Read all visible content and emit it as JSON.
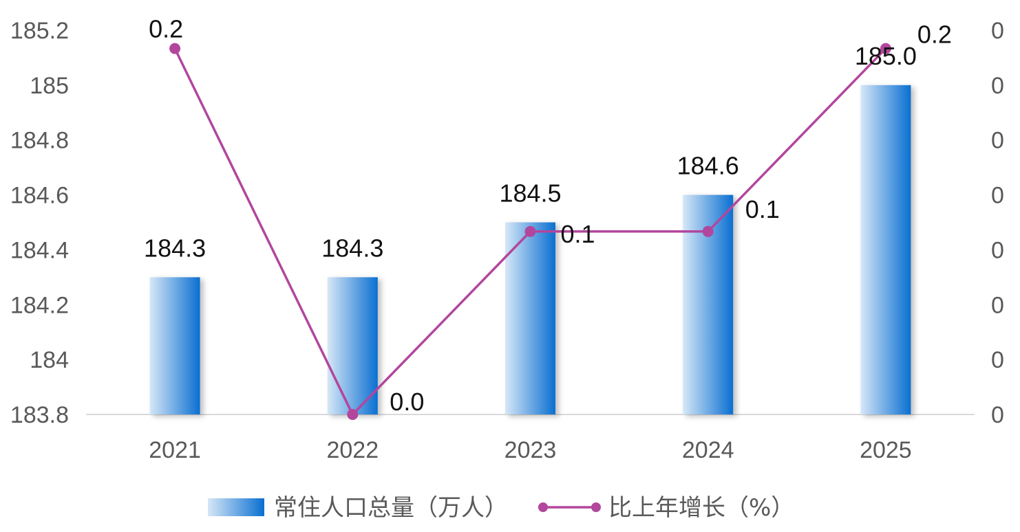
{
  "chart_data": {
    "type": "bar",
    "categories": [
      "2021",
      "2022",
      "2023",
      "2024",
      "2025"
    ],
    "series": [
      {
        "name": "常住人口总量（万人）",
        "type": "bar",
        "axis": "left",
        "values": [
          184.3,
          184.3,
          184.5,
          184.6,
          185.0
        ],
        "labels": [
          "184.3",
          "184.3",
          "184.5",
          "184.6",
          "185.0"
        ]
      },
      {
        "name": "比上年增长（%）",
        "type": "line",
        "axis": "right",
        "values": [
          0.2,
          0.0,
          0.1,
          0.1,
          0.2
        ],
        "labels": [
          "0.2",
          "0.0",
          "0.1",
          "0.1",
          "0.2"
        ]
      }
    ],
    "left_axis": {
      "ylim": [
        183.8,
        185.2
      ],
      "ticks": [
        185.2,
        185,
        184.8,
        184.6,
        184.4,
        184.2,
        184,
        183.8
      ],
      "tick_labels": [
        "185.2",
        "185",
        "184.8",
        "184.6",
        "184.4",
        "184.2",
        "184",
        "183.8"
      ]
    },
    "right_axis": {
      "ylim": [
        0,
        0.21
      ],
      "ticks": [
        0,
        0.03,
        0.06,
        0.09,
        0.12,
        0.15,
        0.18,
        0.21
      ],
      "tick_labels": [
        "0",
        "0",
        "0",
        "0",
        "0",
        "0",
        "0",
        "0"
      ]
    },
    "colors": {
      "bar_light": "#d6e7f7",
      "bar_dark": "#0a6fd1",
      "line": "#b2469d",
      "axis": "#d9d9d9"
    },
    "grid": false,
    "legend_position": "bottom"
  }
}
